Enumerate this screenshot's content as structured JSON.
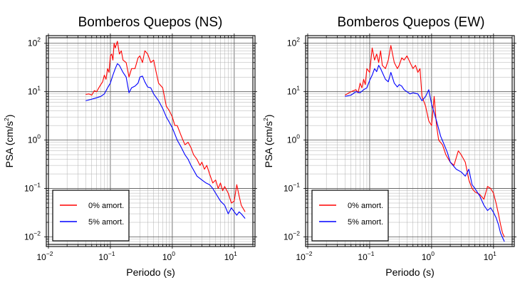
{
  "chart_data": [
    {
      "type": "line",
      "title": "Bomberos Quepos (NS)",
      "xlabel": "Periodo (s)",
      "ylabel": "PSA (cm/s²)",
      "ylabel_base": "PSA (cm/s",
      "ylabel_sup": "2",
      "ylabel_end": ")",
      "x_scale": "log",
      "y_scale": "log",
      "xlim": [
        0.01,
        20
      ],
      "ylim": [
        0.007,
        130
      ],
      "grid": true,
      "legend_position": "bottom-left",
      "x_ticks": [
        {
          "value": 0.01,
          "base": "10",
          "exp": "−2"
        },
        {
          "value": 0.1,
          "base": "10",
          "exp": "−1"
        },
        {
          "value": 1,
          "base": "10",
          "exp": "0"
        },
        {
          "value": 10,
          "base": "10",
          "exp": "1"
        }
      ],
      "y_ticks": [
        {
          "value": 0.01,
          "base": "10",
          "exp": "−2"
        },
        {
          "value": 0.1,
          "base": "10",
          "exp": "−1"
        },
        {
          "value": 1,
          "base": "10",
          "exp": "0"
        },
        {
          "value": 10,
          "base": "10",
          "exp": "1"
        },
        {
          "value": 100,
          "base": "10",
          "exp": "2"
        }
      ],
      "series": [
        {
          "name": "0% amort.",
          "color": "#ff0000",
          "x": [
            0.04,
            0.045,
            0.05,
            0.055,
            0.06,
            0.065,
            0.07,
            0.075,
            0.08,
            0.085,
            0.09,
            0.095,
            0.1,
            0.105,
            0.11,
            0.115,
            0.12,
            0.13,
            0.14,
            0.15,
            0.16,
            0.18,
            0.2,
            0.22,
            0.25,
            0.28,
            0.3,
            0.33,
            0.36,
            0.4,
            0.45,
            0.5,
            0.55,
            0.6,
            0.7,
            0.8,
            0.9,
            1.0,
            1.1,
            1.2,
            1.4,
            1.6,
            1.8,
            2.0,
            2.2,
            2.5,
            2.8,
            3.0,
            3.3,
            3.6,
            4.0,
            4.5,
            5.0,
            5.5,
            6.0,
            6.5,
            7.0,
            8.0,
            9.0,
            10.0,
            11.0,
            12.0,
            13.0,
            15.0
          ],
          "y": [
            8.8,
            9.0,
            8.5,
            10.5,
            10.0,
            12.0,
            14.0,
            16.0,
            22.0,
            18.0,
            30.0,
            25.0,
            55.0,
            60.0,
            45.0,
            100.0,
            80.0,
            110.0,
            60.0,
            70.0,
            45.0,
            40.0,
            20.0,
            30.0,
            30.0,
            50.0,
            55.0,
            40.0,
            70.0,
            60.0,
            40.0,
            45.0,
            25.0,
            15.0,
            12.0,
            5.0,
            4.0,
            3.0,
            2.0,
            2.0,
            1.2,
            0.8,
            0.9,
            0.7,
            0.5,
            0.4,
            0.3,
            0.35,
            0.25,
            0.3,
            0.2,
            0.13,
            0.15,
            0.1,
            0.13,
            0.09,
            0.11,
            0.08,
            0.05,
            0.055,
            0.12,
            0.07,
            0.045,
            0.033
          ]
        },
        {
          "name": "5% amort.",
          "color": "#0000ff",
          "x": [
            0.04,
            0.05,
            0.06,
            0.07,
            0.08,
            0.09,
            0.1,
            0.11,
            0.12,
            0.13,
            0.14,
            0.16,
            0.18,
            0.2,
            0.22,
            0.25,
            0.28,
            0.3,
            0.33,
            0.36,
            0.4,
            0.45,
            0.5,
            0.6,
            0.7,
            0.8,
            0.9,
            1.0,
            1.2,
            1.4,
            1.6,
            1.8,
            2.0,
            2.5,
            3.0,
            3.5,
            4.0,
            4.5,
            5.0,
            6.0,
            7.0,
            8.0,
            9.0,
            10.0,
            11.0,
            12.0,
            13.0,
            15.0
          ],
          "y": [
            6.5,
            7.0,
            7.5,
            8.0,
            9.0,
            12.0,
            15.0,
            22.0,
            30.0,
            38.0,
            35.0,
            25.0,
            20.0,
            9.5,
            12.0,
            13.0,
            15.0,
            20.0,
            21.0,
            16.0,
            12.5,
            12.0,
            9.0,
            6.5,
            4.5,
            3.0,
            2.3,
            1.8,
            1.0,
            0.7,
            0.5,
            0.4,
            0.3,
            0.18,
            0.15,
            0.13,
            0.12,
            0.1,
            0.08,
            0.055,
            0.045,
            0.03,
            0.04,
            0.033,
            0.028,
            0.033,
            0.03,
            0.024
          ]
        }
      ]
    },
    {
      "type": "line",
      "title": "Bomberos Quepos (EW)",
      "xlabel": "Periodo (s)",
      "ylabel": "PSA (cm/s²)",
      "ylabel_base": "PSA (cm/s",
      "ylabel_sup": "2",
      "ylabel_end": ")",
      "x_scale": "log",
      "y_scale": "log",
      "xlim": [
        0.01,
        20
      ],
      "ylim": [
        0.007,
        130
      ],
      "grid": true,
      "legend_position": "bottom-left",
      "x_ticks": [
        {
          "value": 0.01,
          "base": "10",
          "exp": "−2"
        },
        {
          "value": 0.1,
          "base": "10",
          "exp": "−1"
        },
        {
          "value": 1,
          "base": "10",
          "exp": "0"
        },
        {
          "value": 10,
          "base": "10",
          "exp": "1"
        }
      ],
      "y_ticks": [
        {
          "value": 0.01,
          "base": "10",
          "exp": "−2"
        },
        {
          "value": 0.1,
          "base": "10",
          "exp": "−1"
        },
        {
          "value": 1,
          "base": "10",
          "exp": "0"
        },
        {
          "value": 10,
          "base": "10",
          "exp": "1"
        },
        {
          "value": 100,
          "base": "10",
          "exp": "2"
        }
      ],
      "series": [
        {
          "name": "0% amort.",
          "color": "#ff0000",
          "x": [
            0.04,
            0.05,
            0.06,
            0.065,
            0.07,
            0.075,
            0.08,
            0.085,
            0.09,
            0.1,
            0.11,
            0.12,
            0.13,
            0.14,
            0.15,
            0.16,
            0.18,
            0.2,
            0.22,
            0.25,
            0.28,
            0.3,
            0.33,
            0.36,
            0.4,
            0.45,
            0.5,
            0.55,
            0.6,
            0.65,
            0.7,
            0.8,
            0.9,
            1.0,
            1.1,
            1.2,
            1.3,
            1.5,
            1.7,
            2.0,
            2.3,
            2.7,
            3.0,
            3.5,
            4.0,
            4.5,
            5.0,
            6.0,
            7.0,
            8.0,
            9.0,
            10.0,
            11.0,
            12.0,
            13.0,
            14.0,
            15.0
          ],
          "y": [
            8.5,
            10.0,
            11.0,
            9.5,
            15.0,
            12.0,
            18.0,
            14.0,
            30.0,
            25.0,
            80.0,
            45.0,
            60.0,
            40.0,
            70.0,
            35.0,
            30.0,
            45.0,
            90.0,
            40.0,
            30.0,
            35.0,
            50.0,
            45.0,
            55.0,
            40.0,
            30.0,
            35.0,
            25.0,
            30.0,
            8.0,
            5.0,
            2.5,
            2.0,
            8.0,
            2.0,
            1.0,
            0.8,
            0.5,
            0.35,
            0.3,
            0.6,
            0.5,
            0.35,
            0.15,
            0.1,
            0.085,
            0.075,
            0.06,
            0.11,
            0.1,
            0.08,
            0.05,
            0.03,
            0.018,
            0.012,
            0.01
          ]
        },
        {
          "name": "5% amort.",
          "color": "#0000ff",
          "x": [
            0.04,
            0.05,
            0.06,
            0.07,
            0.08,
            0.09,
            0.1,
            0.11,
            0.12,
            0.13,
            0.14,
            0.15,
            0.16,
            0.18,
            0.2,
            0.22,
            0.25,
            0.28,
            0.3,
            0.33,
            0.36,
            0.4,
            0.45,
            0.5,
            0.6,
            0.7,
            0.8,
            0.9,
            1.0,
            1.2,
            1.4,
            1.6,
            1.8,
            2.0,
            2.5,
            3.0,
            3.5,
            4.0,
            4.5,
            5.0,
            6.0,
            7.0,
            8.0,
            9.0,
            10.0,
            11.0,
            12.0,
            13.0,
            15.0
          ],
          "y": [
            8.0,
            8.5,
            10.0,
            9.5,
            11.0,
            12.0,
            17.0,
            22.0,
            30.0,
            26.0,
            35.0,
            30.0,
            25.0,
            18.0,
            16.0,
            25.0,
            15.0,
            12.5,
            14.0,
            13.0,
            11.0,
            10.0,
            9.0,
            9.5,
            9.0,
            6.5,
            8.0,
            11.0,
            5.5,
            2.5,
            1.2,
            0.8,
            0.55,
            0.35,
            0.25,
            0.22,
            0.18,
            0.25,
            0.12,
            0.1,
            0.07,
            0.045,
            0.035,
            0.04,
            0.032,
            0.025,
            0.018,
            0.012,
            0.008
          ]
        }
      ]
    }
  ]
}
